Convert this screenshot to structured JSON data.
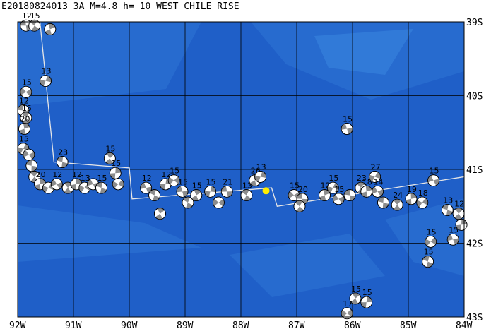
{
  "title": "E20180824013 3A M=4.8 h= 10 WEST CHILE RISE",
  "map": {
    "lon_range": [
      -92,
      -84
    ],
    "lat_range": [
      -43,
      -39
    ],
    "lon_ticks": [
      "92W",
      "91W",
      "90W",
      "89W",
      "88W",
      "87W",
      "86W",
      "85W",
      "84W"
    ],
    "lat_ticks": [
      "39S",
      "40S",
      "41S",
      "42S",
      "43S"
    ],
    "colors": {
      "ocean_deep": "#1f5fc8",
      "ocean_mid": "#2e74d6",
      "ocean_shallow": "#3b87e0",
      "grid": "#000000",
      "plate_boundary": "#e6e6e6",
      "event_star": "#ffee00"
    },
    "plate_boundary": [
      [
        -91.8,
        -39.0
      ],
      [
        -91.6,
        -39.0
      ],
      [
        -91.35,
        -40.9
      ],
      [
        -90.0,
        -40.98
      ],
      [
        -89.95,
        -41.4
      ],
      [
        -87.45,
        -41.25
      ],
      [
        -87.35,
        -41.5
      ],
      [
        -84.0,
        -41.1
      ]
    ],
    "epicenter": {
      "lon": -87.55,
      "lat": -41.29
    }
  },
  "mechanisms": [
    {
      "lon": -91.85,
      "lat": -39.05,
      "depth": "12"
    },
    {
      "lon": -91.7,
      "lat": -39.05,
      "depth": "15"
    },
    {
      "lon": -91.42,
      "lat": -39.1,
      "depth": ""
    },
    {
      "lon": -91.5,
      "lat": -39.8,
      "depth": "13"
    },
    {
      "lon": -91.85,
      "lat": -39.95,
      "depth": "15"
    },
    {
      "lon": -91.9,
      "lat": -40.2,
      "depth": "12"
    },
    {
      "lon": -91.85,
      "lat": -40.3,
      "depth": "15"
    },
    {
      "lon": -91.88,
      "lat": -40.45,
      "depth": "20"
    },
    {
      "lon": -91.9,
      "lat": -40.72,
      "depth": "15"
    },
    {
      "lon": -91.8,
      "lat": -40.8,
      "depth": ""
    },
    {
      "lon": -91.75,
      "lat": -40.95,
      "depth": ""
    },
    {
      "lon": -91.7,
      "lat": -41.1,
      "depth": ""
    },
    {
      "lon": -91.6,
      "lat": -41.2,
      "depth": "20"
    },
    {
      "lon": -91.45,
      "lat": -41.25,
      "depth": ""
    },
    {
      "lon": -91.3,
      "lat": -41.2,
      "depth": "12"
    },
    {
      "lon": -91.2,
      "lat": -40.9,
      "depth": "23"
    },
    {
      "lon": -91.1,
      "lat": -41.25,
      "depth": ""
    },
    {
      "lon": -90.95,
      "lat": -41.2,
      "depth": "12"
    },
    {
      "lon": -90.8,
      "lat": -41.25,
      "depth": "13"
    },
    {
      "lon": -90.65,
      "lat": -41.2,
      "depth": ""
    },
    {
      "lon": -90.5,
      "lat": -41.25,
      "depth": "15"
    },
    {
      "lon": -90.35,
      "lat": -40.85,
      "depth": "15"
    },
    {
      "lon": -90.25,
      "lat": -41.05,
      "depth": "15"
    },
    {
      "lon": -90.2,
      "lat": -41.2,
      "depth": ""
    },
    {
      "lon": -89.7,
      "lat": -41.25,
      "depth": "12"
    },
    {
      "lon": -89.55,
      "lat": -41.35,
      "depth": ""
    },
    {
      "lon": -89.45,
      "lat": -41.6,
      "depth": ""
    },
    {
      "lon": -89.35,
      "lat": -41.2,
      "depth": "12"
    },
    {
      "lon": -89.2,
      "lat": -41.15,
      "depth": "15"
    },
    {
      "lon": -89.05,
      "lat": -41.3,
      "depth": "15"
    },
    {
      "lon": -88.95,
      "lat": -41.45,
      "depth": ""
    },
    {
      "lon": -88.8,
      "lat": -41.35,
      "depth": "15"
    },
    {
      "lon": -88.55,
      "lat": -41.3,
      "depth": "15"
    },
    {
      "lon": -88.4,
      "lat": -41.45,
      "depth": ""
    },
    {
      "lon": -88.25,
      "lat": -41.3,
      "depth": "21"
    },
    {
      "lon": -87.9,
      "lat": -41.35,
      "depth": "13"
    },
    {
      "lon": -87.75,
      "lat": -41.15,
      "depth": "26"
    },
    {
      "lon": -87.65,
      "lat": -41.1,
      "depth": "13"
    },
    {
      "lon": -87.05,
      "lat": -41.35,
      "depth": "15"
    },
    {
      "lon": -86.9,
      "lat": -41.4,
      "depth": "20"
    },
    {
      "lon": -86.95,
      "lat": -41.5,
      "depth": ""
    },
    {
      "lon": -86.5,
      "lat": -41.35,
      "depth": "12"
    },
    {
      "lon": -86.35,
      "lat": -41.25,
      "depth": "15"
    },
    {
      "lon": -86.25,
      "lat": -41.4,
      "depth": "15"
    },
    {
      "lon": -86.05,
      "lat": -41.35,
      "depth": ""
    },
    {
      "lon": -85.85,
      "lat": -41.25,
      "depth": "23"
    },
    {
      "lon": -85.75,
      "lat": -41.3,
      "depth": "18"
    },
    {
      "lon": -85.6,
      "lat": -41.1,
      "depth": "27"
    },
    {
      "lon": -85.55,
      "lat": -41.3,
      "depth": "14"
    },
    {
      "lon": -85.45,
      "lat": -41.45,
      "depth": ""
    },
    {
      "lon": -85.2,
      "lat": -41.48,
      "depth": "24"
    },
    {
      "lon": -84.95,
      "lat": -41.4,
      "depth": "19"
    },
    {
      "lon": -84.75,
      "lat": -41.45,
      "depth": "18"
    },
    {
      "lon": -84.55,
      "lat": -41.15,
      "depth": "15"
    },
    {
      "lon": -84.3,
      "lat": -41.55,
      "depth": "13"
    },
    {
      "lon": -84.1,
      "lat": -41.6,
      "depth": "12"
    },
    {
      "lon": -84.05,
      "lat": -41.75,
      "depth": ""
    },
    {
      "lon": -84.6,
      "lat": -41.98,
      "depth": "15"
    },
    {
      "lon": -84.2,
      "lat": -41.95,
      "depth": "15"
    },
    {
      "lon": -84.65,
      "lat": -42.25,
      "depth": "15"
    },
    {
      "lon": -85.95,
      "lat": -42.75,
      "depth": "15"
    },
    {
      "lon": -85.75,
      "lat": -42.8,
      "depth": "15"
    },
    {
      "lon": -86.1,
      "lat": -42.95,
      "depth": "17"
    },
    {
      "lon": -86.1,
      "lat": -40.45,
      "depth": "15"
    }
  ]
}
